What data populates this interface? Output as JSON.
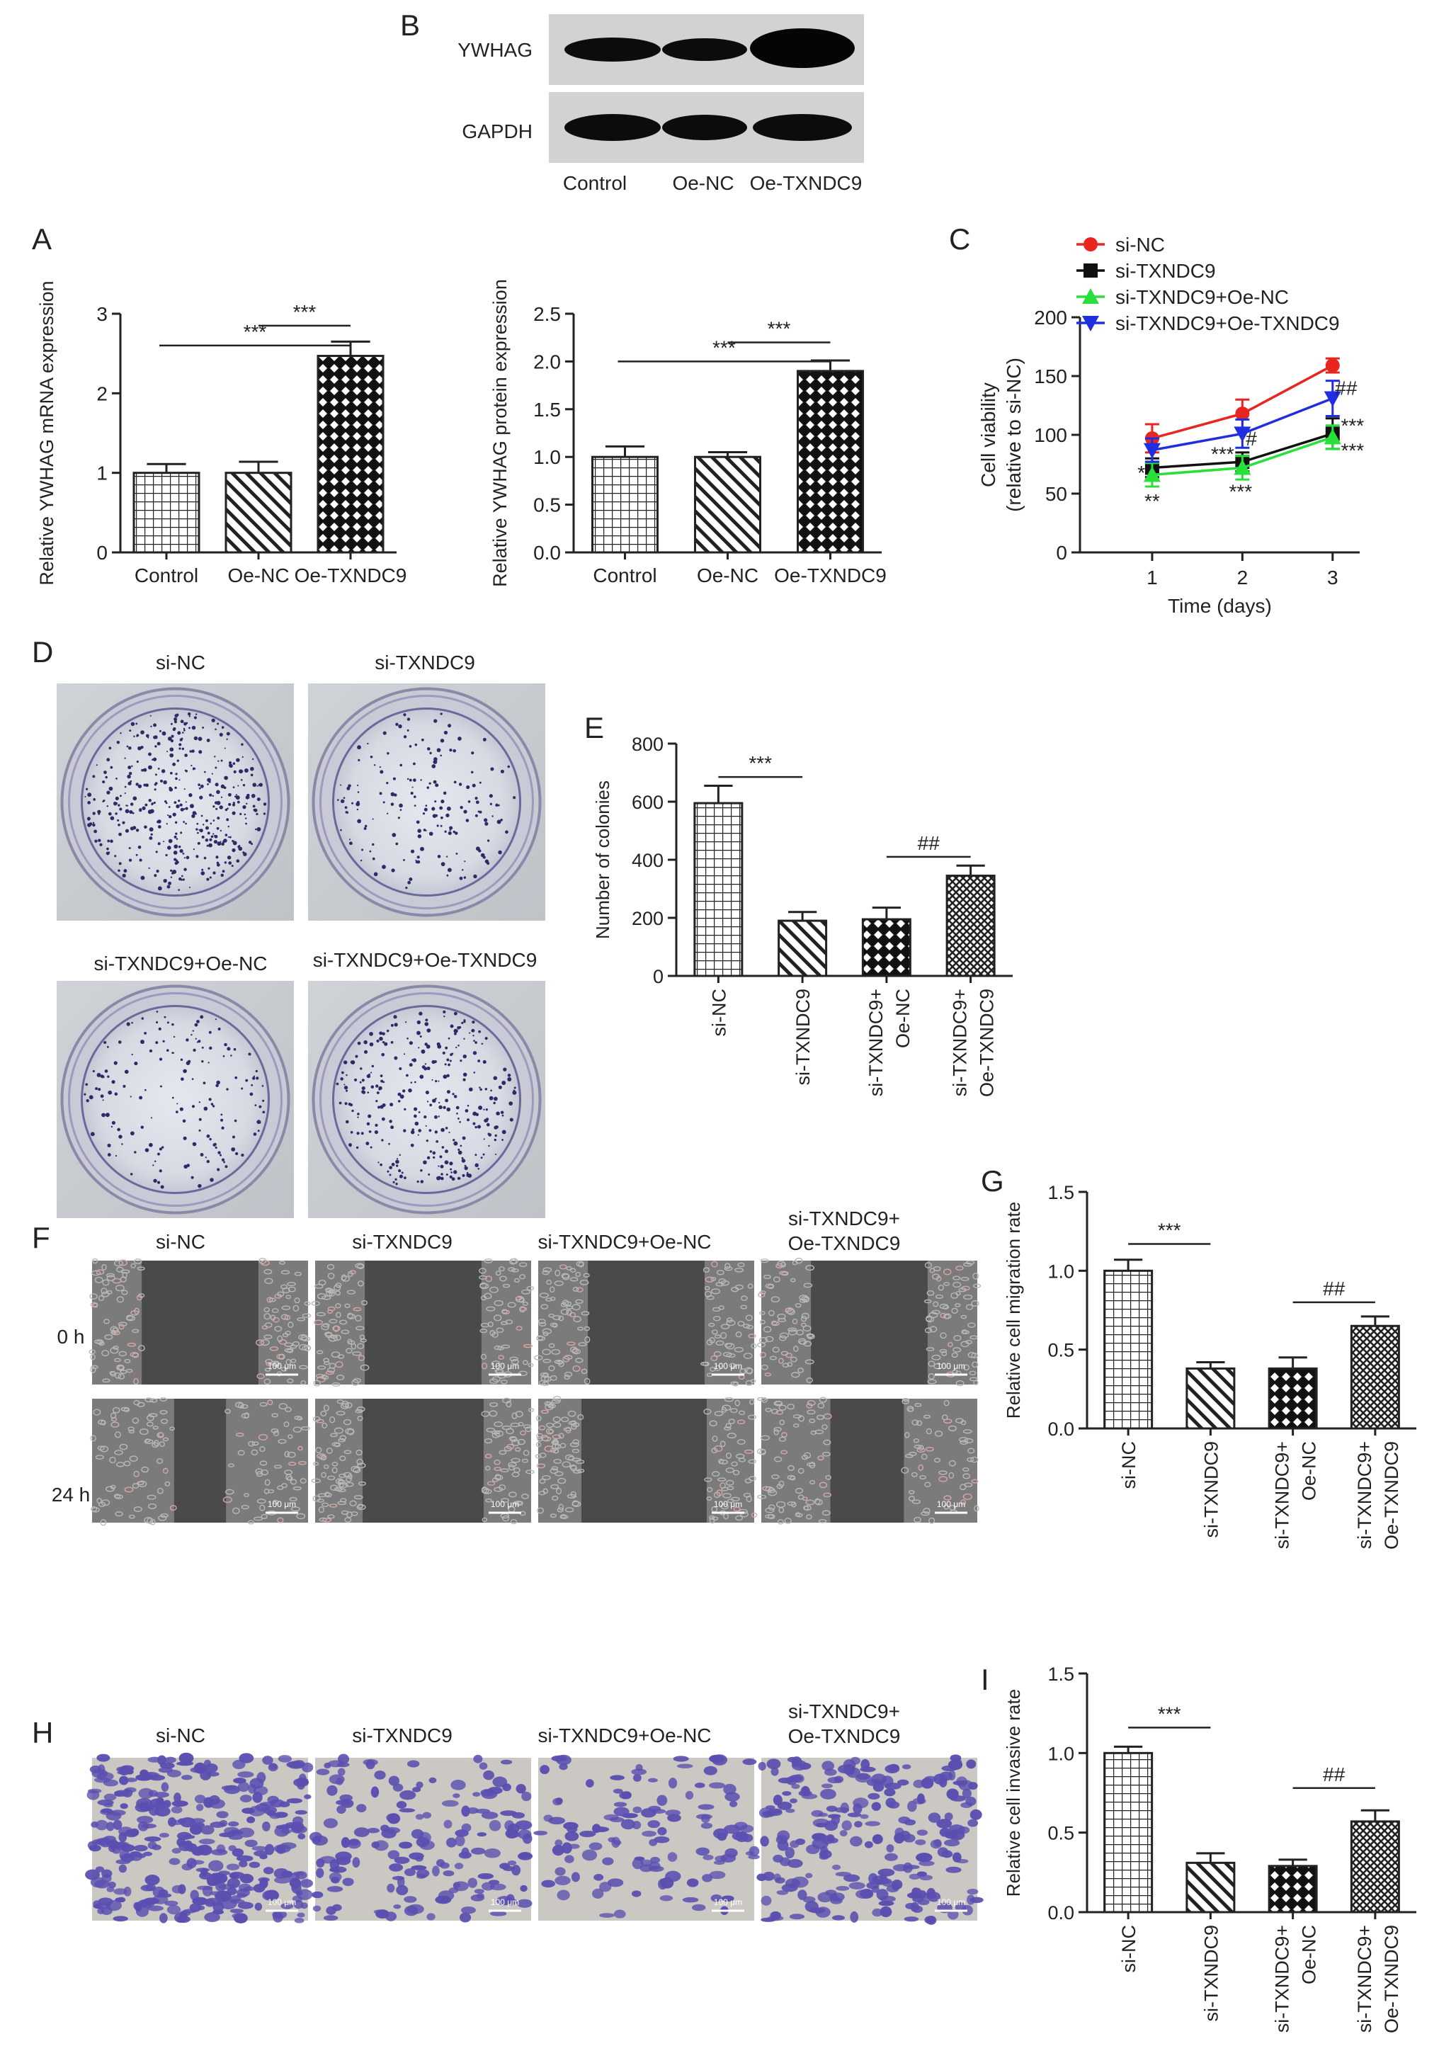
{
  "panel_letters": {
    "A": "A",
    "B": "B",
    "C": "C",
    "D": "D",
    "E": "E",
    "F": "F",
    "G": "G",
    "H": "H",
    "I": "I"
  },
  "western_blot": {
    "bands": [
      "YWHAG",
      "GAPDH"
    ],
    "lanes": [
      "Control",
      "Oe-NC",
      "Oe-TXNDC9"
    ]
  },
  "colony_images": {
    "labels": [
      "si-NC",
      "si-TXNDC9",
      "si-TXNDC9+Oe-NC",
      "si-TXNDC9+Oe-TXNDC9"
    ]
  },
  "migration_images": {
    "columns": [
      "si-NC",
      "si-TXNDC9",
      "si-TXNDC9+Oe-NC",
      [
        "si-TXNDC9+",
        "Oe-TXNDC9"
      ]
    ],
    "rows": [
      "0 h",
      "24 h"
    ],
    "scale_bar": "100 μm"
  },
  "invasion_images": {
    "columns": [
      "si-NC",
      "si-TXNDC9",
      "si-TXNDC9+Oe-NC",
      [
        "si-TXNDC9+",
        "Oe-TXNDC9"
      ]
    ],
    "scale_bar": "100 μm"
  },
  "colors": {
    "siNC": "#e8251f",
    "siTXNDC9": "#111111",
    "siOeNC": "#27e03a",
    "siOeTX": "#1f2fe0",
    "crystal_violet": "#5a4fb0"
  },
  "chart_data": [
    {
      "id": "A1",
      "type": "bar",
      "ylabel": "Relative YWHAG mRNA expression",
      "categories": [
        "Control",
        "Oe-NC",
        "Oe-TXNDC9"
      ],
      "values": [
        1.0,
        1.0,
        2.47
      ],
      "errors": [
        0.11,
        0.14,
        0.18
      ],
      "patterns": [
        "grid",
        "diag",
        "diamond"
      ],
      "ylim": [
        0,
        3
      ],
      "yticks": [
        "0",
        "1",
        "2",
        "3"
      ],
      "ytick_values": [
        0,
        1,
        2,
        3
      ],
      "rotate_labels": false,
      "brackets": [
        {
          "from": 1,
          "to": 2,
          "label": "***",
          "y": 2.85
        },
        {
          "from": 0,
          "to": 2,
          "label": "***",
          "y": 2.6
        }
      ]
    },
    {
      "id": "A2",
      "type": "bar",
      "ylabel": "Relative YWHAG protein expression",
      "categories": [
        "Control",
        "Oe-NC",
        "Oe-TXNDC9"
      ],
      "values": [
        1.0,
        1.0,
        1.9
      ],
      "errors": [
        0.11,
        0.05,
        0.11
      ],
      "patterns": [
        "grid",
        "diag",
        "diamond"
      ],
      "ylim": [
        0,
        2.5
      ],
      "yticks": [
        "0.0",
        "0.5",
        "1.0",
        "1.5",
        "2.0",
        "2.5"
      ],
      "ytick_values": [
        0,
        0.5,
        1,
        1.5,
        2,
        2.5
      ],
      "rotate_labels": false,
      "brackets": [
        {
          "from": 1,
          "to": 2,
          "label": "***",
          "y": 2.2
        },
        {
          "from": 0,
          "to": 2,
          "label": "***",
          "y": 2.0
        }
      ]
    },
    {
      "id": "C",
      "type": "line",
      "xlabel": "Time (days)",
      "ylabel": [
        "Cell viability",
        "(relative to si-NC)"
      ],
      "x": [
        1,
        2,
        3
      ],
      "xlim": [
        0.2,
        3.3
      ],
      "ylim": [
        0,
        200
      ],
      "xticks": [
        "1",
        "2",
        "3"
      ],
      "yticks": [
        "0",
        "50",
        "100",
        "150",
        "200"
      ],
      "ytick_values": [
        0,
        50,
        100,
        150,
        200
      ],
      "legend_position": "top-left",
      "series": [
        {
          "name": "si-NC",
          "values": [
            97,
            118,
            159
          ],
          "errors": [
            12,
            12,
            6
          ],
          "color": "#e8251f",
          "marker": "circle"
        },
        {
          "name": "si-TXNDC9",
          "values": [
            72,
            77,
            101
          ],
          "errors": [
            8,
            8,
            13
          ],
          "color": "#111111",
          "marker": "square"
        },
        {
          "name": "si-TXNDC9+Oe-NC",
          "values": [
            66,
            72,
            98
          ],
          "errors": [
            10,
            10,
            10
          ],
          "color": "#27e03a",
          "marker": "triangle-up"
        },
        {
          "name": "si-TXNDC9+Oe-TXNDC9",
          "values": [
            87,
            101,
            131
          ],
          "errors": [
            10,
            12,
            15
          ],
          "color": "#1f2fe0",
          "marker": "triangle-down"
        }
      ],
      "annotations": [
        {
          "text": "*",
          "x": 0.88,
          "y": 68
        },
        {
          "text": "**",
          "x": 1.0,
          "y": 44
        },
        {
          "text": "***",
          "x": 1.78,
          "y": 84
        },
        {
          "text": "#",
          "x": 2.1,
          "y": 97
        },
        {
          "text": "***",
          "x": 1.98,
          "y": 52
        },
        {
          "text": "##",
          "x": 3.15,
          "y": 140
        },
        {
          "text": "***",
          "x": 3.22,
          "y": 108
        },
        {
          "text": "***",
          "x": 3.22,
          "y": 87
        }
      ]
    },
    {
      "id": "E",
      "type": "bar",
      "ylabel": "Number of colonies",
      "categories": [
        "si-NC",
        "si-TXNDC9",
        [
          "si-TXNDC9+",
          "Oe-NC"
        ],
        [
          "si-TXNDC9+",
          "Oe-TXNDC9"
        ]
      ],
      "values": [
        595,
        190,
        195,
        345
      ],
      "errors": [
        60,
        30,
        40,
        35
      ],
      "patterns": [
        "grid",
        "diag",
        "diamond",
        "fine"
      ],
      "ylim": [
        0,
        800
      ],
      "yticks": [
        "0",
        "200",
        "400",
        "600",
        "800"
      ],
      "ytick_values": [
        0,
        200,
        400,
        600,
        800
      ],
      "rotate_labels": true,
      "brackets": [
        {
          "from": 0,
          "to": 1,
          "label": "***",
          "y": 685
        },
        {
          "from": 2,
          "to": 3,
          "label": "##",
          "y": 410
        }
      ]
    },
    {
      "id": "G",
      "type": "bar",
      "ylabel": "Relative cell migration rate",
      "categories": [
        "si-NC",
        "si-TXNDC9",
        [
          "si-TXNDC9+",
          "Oe-NC"
        ],
        [
          "si-TXNDC9+",
          "Oe-TXNDC9"
        ]
      ],
      "values": [
        1.0,
        0.38,
        0.38,
        0.65
      ],
      "errors": [
        0.07,
        0.04,
        0.07,
        0.06
      ],
      "patterns": [
        "grid",
        "diag",
        "diamond",
        "fine"
      ],
      "ylim": [
        0,
        1.5
      ],
      "yticks": [
        "0.0",
        "0.5",
        "1.0",
        "1.5"
      ],
      "ytick_values": [
        0,
        0.5,
        1,
        1.5
      ],
      "rotate_labels": true,
      "brackets": [
        {
          "from": 0,
          "to": 1,
          "label": "***",
          "y": 1.17
        },
        {
          "from": 2,
          "to": 3,
          "label": "##",
          "y": 0.8
        }
      ]
    },
    {
      "id": "I",
      "type": "bar",
      "ylabel": "Relative cell invasive rate",
      "categories": [
        "si-NC",
        "si-TXNDC9",
        [
          "si-TXNDC9+",
          "Oe-NC"
        ],
        [
          "si-TXNDC9+",
          "Oe-TXNDC9"
        ]
      ],
      "values": [
        1.0,
        0.31,
        0.29,
        0.57
      ],
      "errors": [
        0.04,
        0.06,
        0.04,
        0.07
      ],
      "patterns": [
        "grid",
        "diag",
        "diamond",
        "fine"
      ],
      "ylim": [
        0,
        1.5
      ],
      "yticks": [
        "0.0",
        "0.5",
        "1.0",
        "1.5"
      ],
      "ytick_values": [
        0,
        0.5,
        1,
        1.5
      ],
      "rotate_labels": true,
      "brackets": [
        {
          "from": 0,
          "to": 1,
          "label": "***",
          "y": 1.16
        },
        {
          "from": 2,
          "to": 3,
          "label": "##",
          "y": 0.78
        }
      ]
    }
  ]
}
